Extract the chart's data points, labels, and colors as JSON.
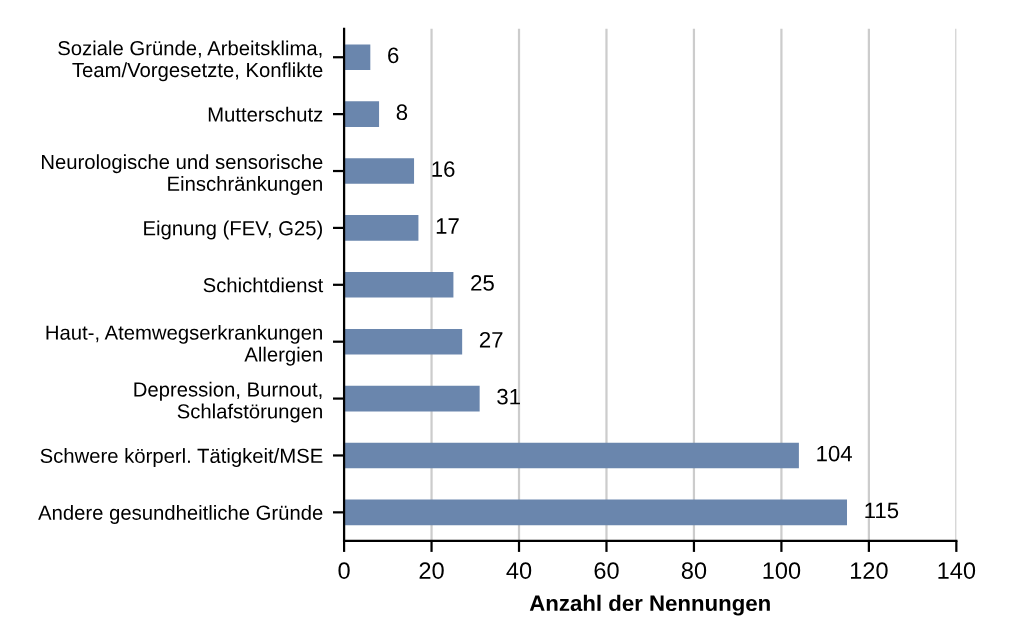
{
  "chart_data": {
    "type": "bar",
    "orientation": "horizontal",
    "xlabel": "Anzahl der Nennungen",
    "categories": [
      "Soziale Gründe, Arbeitsklima,\nTeam/Vorgesetzte, Konflikte",
      "Mutterschutz",
      "Neurologische und sensorische\nEinschränkungen",
      "Eignung (FEV, G25)",
      "Schichtdienst",
      "Haut-, Atemwegserkrankungen\nAllergien",
      "Depression, Burnout,\nSchlafstörungen",
      "Schwere körperl. Tätigkeit/MSE",
      "Andere gesundheitliche Gründe"
    ],
    "values": [
      6,
      8,
      16,
      17,
      25,
      27,
      31,
      104,
      115
    ],
    "color": "#6a86ad",
    "xlim": [
      0,
      140
    ],
    "xticks": [
      0,
      20,
      40,
      60,
      80,
      100,
      120,
      140
    ],
    "grid": "x",
    "data_labels": true
  }
}
